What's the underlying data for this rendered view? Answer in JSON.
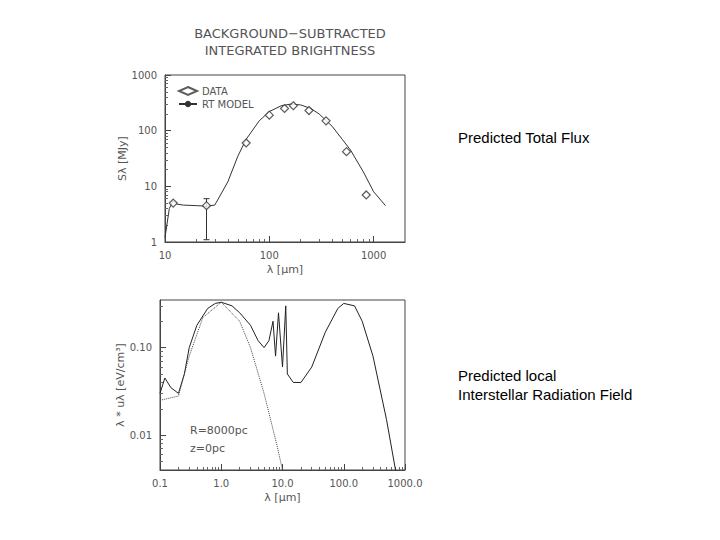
{
  "chart_data": [
    {
      "type": "line",
      "title": "BACKGROUND−SUBTRACTED\nINTEGRATED BRIGHTNESS",
      "x_label": "λ [μm]",
      "y_label": "Sλ [MJy]",
      "log": true,
      "xlim": [
        10,
        2000
      ],
      "xticks": [
        10,
        100,
        1000
      ],
      "ylim": [
        1,
        1000
      ],
      "yticks": [
        1,
        10,
        100,
        1000
      ],
      "legend": "top-left",
      "series": [
        {
          "name": "DATA",
          "type": "scatter",
          "marker": "diamond",
          "color": "#333333",
          "x": [
            12,
            25,
            60,
            100,
            140,
            170,
            240,
            350,
            550,
            850
          ],
          "values": [
            5,
            4.5,
            60,
            190,
            250,
            280,
            230,
            150,
            42,
            7
          ],
          "y_err": [
            null,
            [
              1.1,
              6
            ],
            null,
            null,
            null,
            null,
            null,
            null,
            null,
            null
          ]
        },
        {
          "name": "RT MODEL",
          "type": "line",
          "line_style": "solid",
          "color": "#333333",
          "x": [
            10,
            11,
            12,
            13,
            15,
            20,
            25,
            30,
            40,
            50,
            60,
            80,
            100,
            130,
            160,
            200,
            250,
            300,
            400,
            500,
            600,
            800,
            1000,
            1300
          ],
          "values": [
            1.2,
            4,
            5.5,
            4.8,
            4.6,
            4.5,
            4.4,
            4.6,
            12,
            35,
            70,
            150,
            220,
            280,
            300,
            290,
            250,
            200,
            120,
            70,
            45,
            18,
            8,
            4.5
          ]
        }
      ]
    },
    {
      "type": "line",
      "x_label": "λ [μm]",
      "y_label": "λ * uλ [eV/cm³]",
      "log": true,
      "xlim": [
        0.1,
        1000
      ],
      "xticks": [
        {
          "value": 0.1,
          "label": "0.1"
        },
        {
          "value": 1,
          "label": "1.0"
        },
        {
          "value": 10,
          "label": "10.0"
        },
        {
          "value": 100,
          "label": "100.0"
        },
        {
          "value": 1000,
          "label": "1000.0"
        }
      ],
      "ylim": [
        0.004,
        0.35
      ],
      "yticks": [
        {
          "value": 0.01,
          "label": "0.01"
        },
        {
          "value": 0.1,
          "label": "0.10"
        }
      ],
      "annotations": [
        "R=8000pc",
        "z=0pc"
      ],
      "series": [
        {
          "type": "line",
          "line_style": "solid",
          "color": "#222222",
          "x": [
            0.1,
            0.12,
            0.15,
            0.2,
            0.25,
            0.3,
            0.4,
            0.6,
            0.8,
            1,
            1.5,
            2,
            3,
            4,
            5,
            6,
            7,
            7.7,
            8.6,
            10,
            11.3,
            12,
            15,
            20,
            30,
            50,
            80,
            100,
            150,
            200,
            300,
            500,
            700
          ],
          "values": [
            0.03,
            0.045,
            0.035,
            0.03,
            0.05,
            0.1,
            0.18,
            0.28,
            0.32,
            0.33,
            0.3,
            0.25,
            0.18,
            0.12,
            0.1,
            0.12,
            0.2,
            0.08,
            0.25,
            0.06,
            0.3,
            0.05,
            0.04,
            0.04,
            0.06,
            0.15,
            0.28,
            0.32,
            0.3,
            0.2,
            0.08,
            0.015,
            0.004
          ]
        },
        {
          "type": "line",
          "line_style": "dotted",
          "color": "#444444",
          "x": [
            0.1,
            0.2,
            0.3,
            0.5,
            1,
            2,
            3,
            5,
            8,
            10
          ],
          "values": [
            0.025,
            0.028,
            0.08,
            0.22,
            0.33,
            0.2,
            0.1,
            0.03,
            0.008,
            0.004
          ]
        }
      ]
    }
  ],
  "side_labels": [
    "Predicted Total Flux",
    "Predicted local\nInterstellar Radiation Field"
  ]
}
